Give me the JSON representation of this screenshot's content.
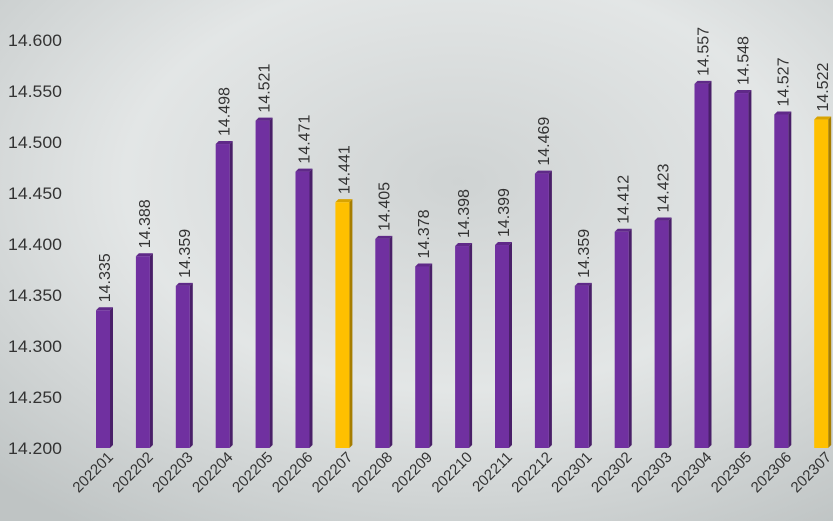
{
  "chart_data": {
    "type": "bar",
    "categories": [
      "202201",
      "202202",
      "202203",
      "202204",
      "202205",
      "202206",
      "202207",
      "202208",
      "202209",
      "202210",
      "202211",
      "202212",
      "202301",
      "202302",
      "202303",
      "202304",
      "202305",
      "202306",
      "202307"
    ],
    "values": [
      14.335,
      14.388,
      14.359,
      14.498,
      14.521,
      14.471,
      14.441,
      14.405,
      14.378,
      14.398,
      14.399,
      14.469,
      14.359,
      14.412,
      14.423,
      14.557,
      14.548,
      14.527,
      14.522
    ],
    "colors": [
      "#7030a0",
      "#7030a0",
      "#7030a0",
      "#7030a0",
      "#7030a0",
      "#7030a0",
      "#ffc000",
      "#7030a0",
      "#7030a0",
      "#7030a0",
      "#7030a0",
      "#7030a0",
      "#7030a0",
      "#7030a0",
      "#7030a0",
      "#7030a0",
      "#7030a0",
      "#7030a0",
      "#ffc000"
    ],
    "ylim": [
      14.2,
      14.6
    ],
    "yticks": [
      {
        "value": 14.2,
        "label": "14.200"
      },
      {
        "value": 14.25,
        "label": "14.250"
      },
      {
        "value": 14.3,
        "label": "14.300"
      },
      {
        "value": 14.35,
        "label": "14.350"
      },
      {
        "value": 14.4,
        "label": "14.400"
      },
      {
        "value": 14.45,
        "label": "14.450"
      },
      {
        "value": 14.5,
        "label": "14.500"
      },
      {
        "value": 14.55,
        "label": "14.550"
      },
      {
        "value": 14.6,
        "label": "14.600"
      }
    ],
    "grid": false
  }
}
